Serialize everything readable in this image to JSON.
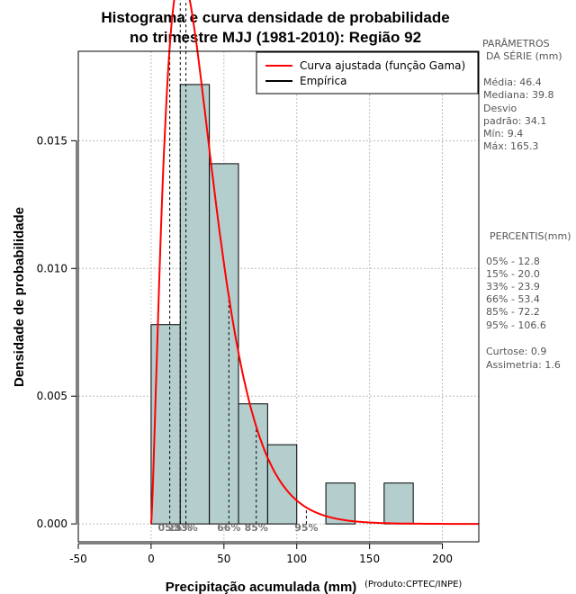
{
  "chart_data": {
    "type": "bar",
    "title_line1": "Histograma e curva densidade de probabilidade",
    "title_line2": "no trimestre MJJ (1981-2010): Região 92",
    "xlabel": "Precipitação acumulada (mm)",
    "ylabel": "Densidade de probabilidade",
    "credit": "(Produto:CPTEC/INPE)",
    "xlim": [
      -50,
      225
    ],
    "ylim": [
      -0.0007,
      0.0185
    ],
    "x_ticks": [
      -50,
      0,
      50,
      100,
      150,
      200
    ],
    "x_tick_labels": [
      "-50",
      "0",
      "50",
      "100",
      "150",
      "200"
    ],
    "y_ticks": [
      0,
      0.005,
      0.01,
      0.015
    ],
    "y_tick_labels": [
      "0.000",
      "0.005",
      "0.010",
      "0.015"
    ],
    "grid": true,
    "histogram": [
      {
        "x0": 0,
        "x1": 20,
        "density": 0.0078
      },
      {
        "x0": 20,
        "x1": 40,
        "density": 0.0172
      },
      {
        "x0": 40,
        "x1": 60,
        "density": 0.0141
      },
      {
        "x0": 60,
        "x1": 80,
        "density": 0.0047
      },
      {
        "x0": 80,
        "x1": 100,
        "density": 0.0031
      },
      {
        "x0": 120,
        "x1": 140,
        "density": 0.0016
      },
      {
        "x0": 160,
        "x1": 180,
        "density": 0.0016
      }
    ],
    "gamma_fit": {
      "shape": 2.4,
      "scale": 14.8
    },
    "legend": {
      "position": "top-right",
      "entries": [
        {
          "label": "Curva ajustada (função Gama)",
          "color": "#ff0000"
        },
        {
          "label": "Empírica",
          "color": "#000000"
        }
      ]
    },
    "percentile_markers": [
      {
        "label": "05%",
        "value": 12.8
      },
      {
        "label": "15%",
        "value": 20.0
      },
      {
        "label": "33%",
        "value": 23.9
      },
      {
        "label": "66%",
        "value": 53.4
      },
      {
        "label": "85%",
        "value": 72.2
      },
      {
        "label": "95%",
        "value": 106.6
      }
    ],
    "colors": {
      "bar_fill": "#b4cdcd",
      "curve": "#ff0000",
      "grid": "#bbbbbb"
    }
  },
  "side_panel": {
    "params_title_1": "PARÂMETROS",
    "params_title_2": "DA SÉRIE (mm)",
    "media": "Média:  46.4",
    "mediana": "Mediana:  39.8",
    "desvio_1": "Desvio",
    "desvio_2": "padrão:  34.1",
    "min": "Mín:  9.4",
    "max": "Máx:  165.3",
    "percentis_title": "PERCENTIS(mm)",
    "p05": "05% -  12.8",
    "p15": "15% -  20.0",
    "p33": "33% -  23.9",
    "p66": "66% -  53.4",
    "p85": "85% -  72.2",
    "p95": "95% -  106.6",
    "curtose": "Curtose:  0.9",
    "assimetria": "Assimetria:  1.6"
  }
}
